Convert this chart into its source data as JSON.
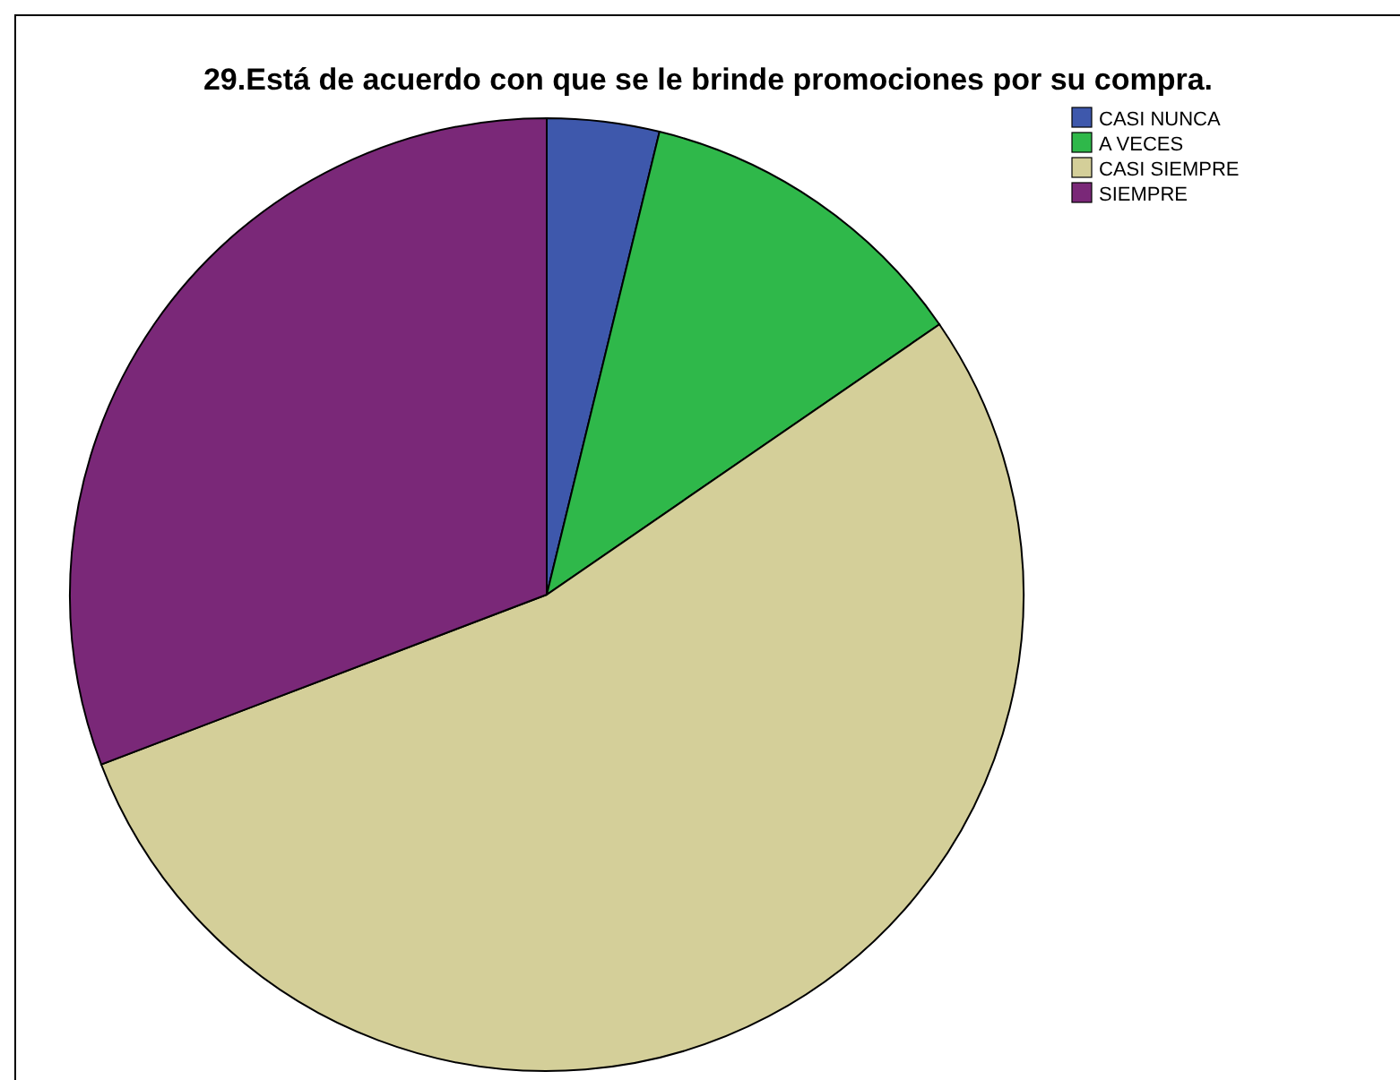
{
  "chart_data": {
    "type": "pie",
    "title": "29.Está de acuerdo con que se le brinde promociones por su compra.",
    "categories": [
      "CASI NUNCA",
      "A VECES",
      "CASI SIEMPRE",
      "SIEMPRE"
    ],
    "values": [
      3.8,
      11.6,
      53.8,
      30.8
    ],
    "colors": [
      "#3e58ac",
      "#2fb84a",
      "#d4cf99",
      "#7a2878"
    ],
    "legend": "top right"
  }
}
